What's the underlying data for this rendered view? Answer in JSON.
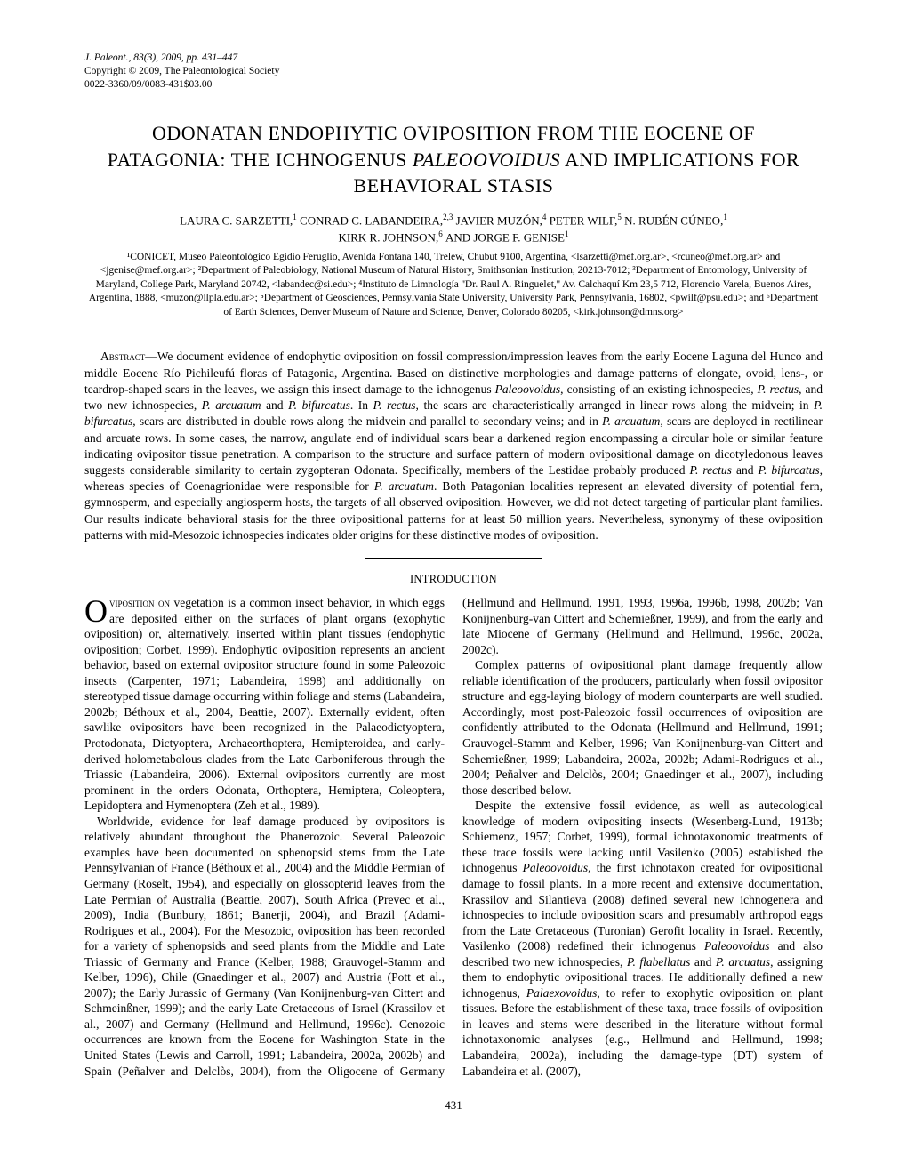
{
  "header": {
    "journal_line": "J. Paleont., 83(3), 2009, pp. 431–447",
    "copyright_line": "Copyright © 2009, The Paleontological Society",
    "issn_line": "0022-3360/09/0083-431$03.00"
  },
  "title": {
    "line1": "ODONATAN ENDOPHYTIC OVIPOSITION FROM THE EOCENE OF",
    "line2_a": "PATAGONIA: THE ICHNOGENUS ",
    "line2_b": "PALEOOVOIDUS",
    "line2_c": " AND IMPLICATIONS FOR",
    "line3": "BEHAVIORAL STASIS"
  },
  "authors": {
    "line1_a": "LAURA C. SARZETTI,",
    "line1_sup1": "1",
    "line1_b": " CONRAD C. LABANDEIRA,",
    "line1_sup2": "2,3",
    "line1_c": " JAVIER MUZÓN,",
    "line1_sup3": "4",
    "line1_d": " PETER WILF,",
    "line1_sup4": "5",
    "line1_e": " N. RUBÉN CÚNEO,",
    "line1_sup5": "1",
    "line2_a": "KIRK R. JOHNSON,",
    "line2_sup6": "6",
    "line2_b": " AND ",
    "line2_c": "JORGE F. GENISE",
    "line2_sup7": "1"
  },
  "affiliations": {
    "text": "¹CONICET, Museo Paleontológico Egidio Feruglio, Avenida Fontana 140, Trelew, Chubut 9100, Argentina, <lsarzetti@mef.org.ar>, <rcuneo@mef.org.ar> and <jgenise@mef.org.ar>; ²Department of Paleobiology, National Museum of Natural History, Smithsonian Institution, 20213-7012; ³Department of Entomology, University of Maryland, College Park, Maryland 20742, <labandec@si.edu>; ⁴Instituto de Limnología ''Dr. Raul A. Ringuelet,'' Av. Calchaquí Km 23,5 712, Florencio Varela, Buenos Aires, Argentina, 1888, <muzon@ilpla.edu.ar>; ⁵Department of Geosciences, Pennsylvania State University, University Park, Pennsylvania, 16802, <pwilf@psu.edu>; and ⁶Department of Earth Sciences, Denver Museum of Nature and Science, Denver, Colorado 80205, <kirk.johnson@dmns.org>"
  },
  "abstract": {
    "label": "Abstract",
    "body_a": "—We document evidence of endophytic oviposition on fossil compression/impression leaves from the early Eocene Laguna del Hunco and middle Eocene Río Pichileufú floras of Patagonia, Argentina. Based on distinctive morphologies and damage patterns of elongate, ovoid, lens-, or teardrop-shaped scars in the leaves, we assign this insect damage to the ichnogenus ",
    "italic1": "Paleoovoidus",
    "body_b": ", consisting of an existing ichnospecies, ",
    "italic2": "P. rectus",
    "body_c": ", and two new ichnospecies, ",
    "italic3": "P. arcuatum",
    "body_d": " and ",
    "italic4": "P. bifurcatus",
    "body_e": ". In ",
    "italic5": "P. rectus",
    "body_f": ", the scars are characteristically arranged in linear rows along the midvein; in ",
    "italic6": "P. bifurcatus",
    "body_g": ", scars are distributed in double rows along the midvein and parallel to secondary veins; and in ",
    "italic7": "P. arcuatum",
    "body_h": ", scars are deployed in rectilinear and arcuate rows. In some cases, the narrow, angulate end of individual scars bear a darkened region encompassing a circular hole or similar feature indicating ovipositor tissue penetration. A comparison to the structure and surface pattern of modern ovipositional damage on dicotyledonous leaves suggests considerable similarity to certain zygopteran Odonata. Specifically, members of the Lestidae probably produced ",
    "italic8": "P. rectus",
    "body_i": " and ",
    "italic9": "P. bifurcatus",
    "body_j": ", whereas species of Coenagrionidae were responsible for ",
    "italic10": "P. arcuatum",
    "body_k": ". Both Patagonian localities represent an elevated diversity of potential fern, gymnosperm, and especially angiosperm hosts, the targets of all observed oviposition. However, we did not detect targeting of particular plant families. Our results indicate behavioral stasis for the three ovipositional patterns for at least 50 million years. Nevertheless, synonymy of these oviposition patterns with mid-Mesozoic ichnospecies indicates older origins for these distinctive modes of oviposition."
  },
  "section": {
    "heading": "INTRODUCTION"
  },
  "body": {
    "dropcap": "O",
    "p1_caps": "viposition on",
    "p1": " vegetation is a common insect behavior, in which eggs are deposited either on the surfaces of plant organs (exophytic oviposition) or, alternatively, inserted within plant tissues (endophytic oviposition; Corbet, 1999). Endophytic oviposition represents an ancient behavior, based on external ovipositor structure found in some Paleozoic insects (Carpenter, 1971; Labandeira, 1998) and additionally on stereotyped tissue damage occurring within foliage and stems (Labandeira, 2002b; Béthoux et al., 2004, Beattie, 2007). Externally evident, often sawlike ovipositors have been recognized in the Palaeodictyoptera, Protodonata, Dictyoptera, Archaeorthoptera, Hemipteroidea, and early-derived holometabolous clades from the Late Carboniferous through the Triassic (Labandeira, 2006). External ovipositors currently are most prominent in the orders Odonata, Orthoptera, Hemiptera, Coleoptera, Lepidoptera and Hymenoptera (Zeh et al., 1989).",
    "p2": "Worldwide, evidence for leaf damage produced by ovipositors is relatively abundant throughout the Phanerozoic. Several Paleozoic examples have been documented on sphenopsid stems from the Late Pennsylvanian of France (Béthoux et al., 2004) and the Middle Permian of Germany (Roselt, 1954), and especially on glossopterid leaves from the Late Permian of Australia (Beattie, 2007), South Africa (Prevec et al., 2009), India (Bunbury, 1861; Banerji, 2004), and Brazil (Adami-Rodrigues et al., 2004). For the Mesozoic, oviposition has been recorded for a variety of sphenopsids and seed plants from the Middle and Late Triassic of Germany and France (Kelber, 1988; Grauvogel-Stamm and Kelber, 1996), Chile (Gnaedinger et al., 2007) and Austria (Pott et al., 2007); the Early Jurassic of Germany (Van Konijnenburg-van Cittert and Schmeinßner, 1999); and the early Late Cretaceous of Israel (Krassilov et al., 2007) and Germany (Hellmund and Hellmund, 1996c). Cenozoic occurrences are known from the Eocene for Washington State in the United States (Lewis and Carroll, 1991; Labandeira, 2002a, 2002b) and Spain (Peñalver and Delclòs, 2004), from the Oligocene of Germany (Hellmund and Hellmund, 1991, 1993, 1996a, 1996b, 1998, 2002b; Van Konijnenburg-van Cittert and Schemießner, 1999), and from the early and late Miocene of Germany (Hellmund and Hellmund, 1996c, 2002a, 2002c).",
    "p3": "Complex patterns of ovipositional plant damage frequently allow reliable identification of the producers, particularly when fossil ovipositor structure and egg-laying biology of modern counterparts are well studied. Accordingly, most post-Paleozoic fossil occurrences of oviposition are confidently attributed to the Odonata (Hellmund and Hellmund, 1991; Grauvogel-Stamm and Kelber, 1996; Van Konijnenburg-van Cittert and Schemießner, 1999; Labandeira, 2002a, 2002b; Adami-Rodrigues et al., 2004; Peñalver and Delclòs, 2004; Gnaedinger et al., 2007), including those described below.",
    "p4_a": "Despite the extensive fossil evidence, as well as autecological knowledge of modern ovipositing insects (Wesenberg-Lund, 1913b; Schiemenz, 1957; Corbet, 1999), formal ichnotaxonomic treatments of these trace fossils were lacking until Vasilenko (2005) established the ichnogenus ",
    "p4_i1": "Paleoovoidus",
    "p4_b": ", the first ichnotaxon created for ovipositional damage to fossil plants. In a more recent and extensive documentation, Krassilov and Silantieva (2008) defined several new ichnogenera and ichnospecies to include oviposition scars and presumably arthropod eggs from the Late Cretaceous (Turonian) Gerofit locality in Israel. Recently, Vasilenko (2008) redefined their ichnogenus ",
    "p4_i2": "Paleoovoidus",
    "p4_c": " and also described two new ichnospecies, ",
    "p4_i3": "P. flabellatus",
    "p4_d": " and ",
    "p4_i4": "P. arcuatus",
    "p4_e": ", assigning them to endophytic ovipositional traces. He additionally defined a new ichnogenus, ",
    "p4_i5": "Palaexovoidus",
    "p4_f": ", to refer to exophytic oviposition on plant tissues. Before the establishment of these taxa, trace fossils of oviposition in leaves and stems were described in the literature without formal ichnotaxonomic analyses (e.g., Hellmund and Hellmund, 1998; Labandeira, 2002a), including the damage-type (DT) system of Labandeira et al. (2007),"
  },
  "page_number": "431"
}
